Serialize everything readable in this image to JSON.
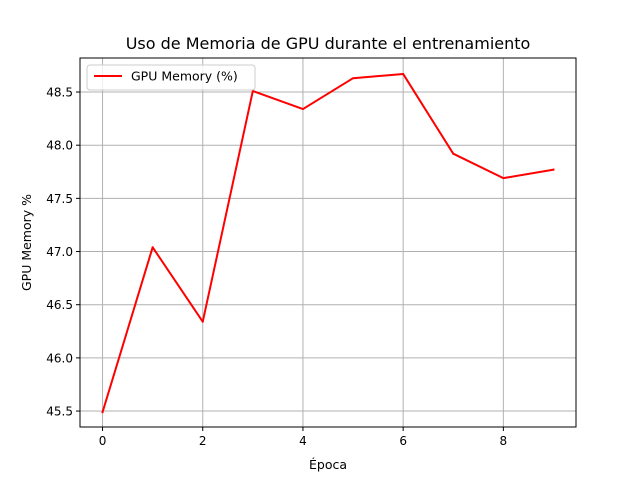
{
  "chart_data": {
    "type": "line",
    "title": "Uso de Memoria de GPU durante el entrenamiento",
    "xlabel": "Época",
    "ylabel": "GPU Memory %",
    "x": [
      0,
      1,
      2,
      3,
      4,
      5,
      6,
      7,
      8,
      9
    ],
    "series": [
      {
        "name": "GPU Memory (%)",
        "color": "#ff0000",
        "values": [
          45.49,
          47.04,
          46.34,
          48.51,
          48.34,
          48.63,
          48.67,
          47.92,
          47.69,
          47.77
        ]
      }
    ],
    "xlim": [
      -0.45,
      9.45
    ],
    "ylim": [
      45.35,
      48.82
    ],
    "xticks": [
      0,
      2,
      4,
      6,
      8
    ],
    "xtick_labels": [
      "0",
      "2",
      "4",
      "6",
      "8"
    ],
    "yticks": [
      45.5,
      46.0,
      46.5,
      47.0,
      47.5,
      48.0,
      48.5
    ],
    "ytick_labels": [
      "45.5",
      "46.0",
      "46.5",
      "47.0",
      "47.5",
      "48.0",
      "48.5"
    ],
    "grid": true,
    "legend_position": "upper left"
  }
}
